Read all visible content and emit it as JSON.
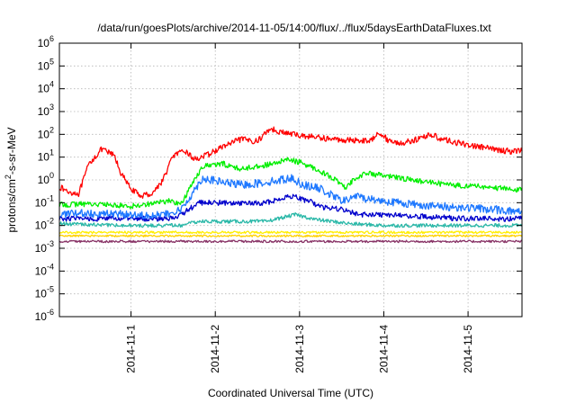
{
  "chart_data": {
    "type": "line",
    "title": "/data/run/goesPlots/archive/2014-11-05/14:00/flux/../flux/5daysEarthDataFluxes.txt",
    "xlabel": "Coordinated Universal Time (UTC)",
    "ylabel": {
      "base": "protons/cm",
      "sup": "2",
      "rest": "-s-sr-MeV"
    },
    "yscale": "log",
    "ylim": [
      1e-06,
      1000000.0
    ],
    "xlim": [
      -0.85,
      4.64
    ],
    "grid": true,
    "y_ticks": [
      {
        "exp": "-6",
        "v": -6
      },
      {
        "exp": "-5",
        "v": -5
      },
      {
        "exp": "-4",
        "v": -4
      },
      {
        "exp": "-3",
        "v": -3
      },
      {
        "exp": "-2",
        "v": -2
      },
      {
        "exp": "-1",
        "v": -1
      },
      {
        "exp": "0",
        "v": 0
      },
      {
        "exp": "1",
        "v": 1
      },
      {
        "exp": "2",
        "v": 2
      },
      {
        "exp": "3",
        "v": 3
      },
      {
        "exp": "4",
        "v": 4
      },
      {
        "exp": "5",
        "v": 5
      },
      {
        "exp": "6",
        "v": 6
      }
    ],
    "x_ticks": [
      {
        "label": "2014-11-1",
        "v": 0
      },
      {
        "label": "2014-11-2",
        "v": 1
      },
      {
        "label": "2014-11-3",
        "v": 2
      },
      {
        "label": "2014-11-4",
        "v": 3
      },
      {
        "label": "2014-11-5",
        "v": 4
      }
    ],
    "series": [
      {
        "color": "#ff0000",
        "noise": 0.13,
        "points": [
          [
            -0.85,
            0.5
          ],
          [
            -0.75,
            0.3
          ],
          [
            -0.62,
            0.25
          ],
          [
            -0.5,
            5
          ],
          [
            -0.35,
            22
          ],
          [
            -0.2,
            12
          ],
          [
            -0.12,
            2
          ],
          [
            -0.02,
            0.5
          ],
          [
            0.1,
            0.2
          ],
          [
            0.25,
            0.25
          ],
          [
            0.38,
            1
          ],
          [
            0.5,
            12
          ],
          [
            0.65,
            18
          ],
          [
            0.75,
            8
          ],
          [
            0.9,
            12
          ],
          [
            1.1,
            30
          ],
          [
            1.3,
            60
          ],
          [
            1.5,
            50
          ],
          [
            1.65,
            180
          ],
          [
            1.8,
            120
          ],
          [
            2.0,
            90
          ],
          [
            2.2,
            75
          ],
          [
            2.4,
            60
          ],
          [
            2.6,
            55
          ],
          [
            2.75,
            55
          ],
          [
            2.85,
            50
          ],
          [
            2.93,
            140
          ],
          [
            3.05,
            55
          ],
          [
            3.2,
            40
          ],
          [
            3.4,
            60
          ],
          [
            3.55,
            100
          ],
          [
            3.7,
            60
          ],
          [
            3.9,
            40
          ],
          [
            4.1,
            30
          ],
          [
            4.3,
            22
          ],
          [
            4.5,
            18
          ],
          [
            4.64,
            20
          ]
        ]
      },
      {
        "color": "#00ee00",
        "noise": 0.12,
        "points": [
          [
            -0.85,
            0.08
          ],
          [
            -0.5,
            0.09
          ],
          [
            0,
            0.07
          ],
          [
            0.45,
            0.12
          ],
          [
            0.6,
            0.09
          ],
          [
            0.75,
            1
          ],
          [
            0.85,
            4
          ],
          [
            1.1,
            5
          ],
          [
            1.3,
            3
          ],
          [
            1.5,
            4
          ],
          [
            1.7,
            5
          ],
          [
            1.85,
            8
          ],
          [
            2.0,
            6
          ],
          [
            2.2,
            3
          ],
          [
            2.4,
            1.2
          ],
          [
            2.55,
            0.4
          ],
          [
            2.65,
            1.2
          ],
          [
            2.8,
            2.0
          ],
          [
            3.0,
            1.5
          ],
          [
            3.2,
            1.2
          ],
          [
            3.5,
            0.8
          ],
          [
            3.8,
            0.6
          ],
          [
            4.2,
            0.5
          ],
          [
            4.64,
            0.35
          ]
        ]
      },
      {
        "color": "#1e78ff",
        "noise": 0.18,
        "points": [
          [
            -0.85,
            0.03
          ],
          [
            -0.5,
            0.035
          ],
          [
            0,
            0.03
          ],
          [
            0.45,
            0.03
          ],
          [
            0.6,
            0.05
          ],
          [
            0.75,
            0.35
          ],
          [
            0.85,
            1.2
          ],
          [
            1.0,
            0.9
          ],
          [
            1.3,
            0.6
          ],
          [
            1.5,
            0.7
          ],
          [
            1.7,
            0.9
          ],
          [
            1.9,
            1.2
          ],
          [
            2.05,
            0.6
          ],
          [
            2.25,
            0.4
          ],
          [
            2.45,
            0.15
          ],
          [
            2.55,
            0.12
          ],
          [
            2.65,
            0.2
          ],
          [
            2.8,
            0.15
          ],
          [
            3.0,
            0.12
          ],
          [
            3.3,
            0.09
          ],
          [
            3.6,
            0.07
          ],
          [
            4.0,
            0.06
          ],
          [
            4.3,
            0.05
          ],
          [
            4.64,
            0.04
          ]
        ]
      },
      {
        "color": "#0000cc",
        "noise": 0.12,
        "points": [
          [
            -0.85,
            0.02
          ],
          [
            -0.5,
            0.02
          ],
          [
            0,
            0.02
          ],
          [
            0.45,
            0.02
          ],
          [
            0.6,
            0.03
          ],
          [
            0.8,
            0.1
          ],
          [
            1.0,
            0.1
          ],
          [
            1.3,
            0.09
          ],
          [
            1.6,
            0.1
          ],
          [
            1.9,
            0.2
          ],
          [
            2.1,
            0.12
          ],
          [
            2.3,
            0.06
          ],
          [
            2.5,
            0.05
          ],
          [
            2.7,
            0.03
          ],
          [
            3.0,
            0.03
          ],
          [
            3.4,
            0.025
          ],
          [
            4.0,
            0.02
          ],
          [
            4.64,
            0.02
          ]
        ]
      },
      {
        "color": "#2ab8a8",
        "noise": 0.08,
        "points": [
          [
            -0.85,
            0.012
          ],
          [
            -0.5,
            0.011
          ],
          [
            0,
            0.01
          ],
          [
            0.6,
            0.01
          ],
          [
            0.8,
            0.015
          ],
          [
            1.2,
            0.015
          ],
          [
            1.6,
            0.015
          ],
          [
            1.95,
            0.03
          ],
          [
            2.2,
            0.018
          ],
          [
            2.6,
            0.012
          ],
          [
            3.0,
            0.01
          ],
          [
            3.5,
            0.01
          ],
          [
            4.64,
            0.01
          ]
        ]
      },
      {
        "color": "#ffee00",
        "noise": 0.05,
        "points": [
          [
            -0.85,
            0.005
          ],
          [
            4.64,
            0.005
          ]
        ]
      },
      {
        "color": "#ffd100",
        "noise": 0.04,
        "points": [
          [
            -0.85,
            0.0035
          ],
          [
            4.64,
            0.0035
          ]
        ]
      },
      {
        "color": "#883366",
        "noise": 0.05,
        "points": [
          [
            -0.85,
            0.002
          ],
          [
            4.64,
            0.002
          ]
        ]
      }
    ]
  }
}
